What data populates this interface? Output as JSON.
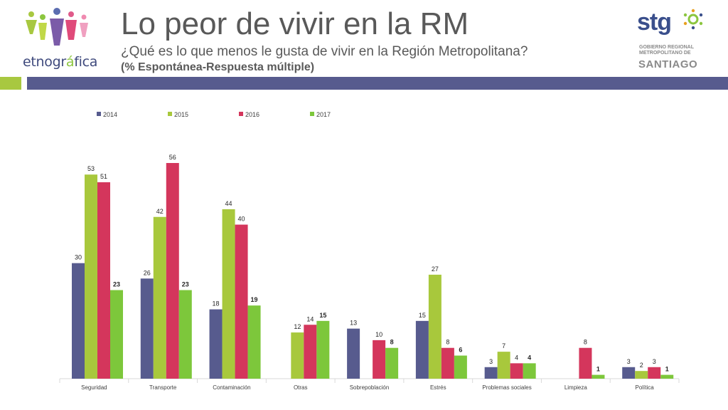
{
  "header": {
    "title": "Lo peor de vivir en la RM",
    "subtitle": "¿Qué es lo que menos le gusta de vivir en la Región Metropolitana?",
    "note": "(% Espontánea-Respuesta múltiple)"
  },
  "logos": {
    "left": {
      "brand_prefix": "etnogr",
      "brand_accent": "á",
      "brand_suffix": "fica"
    },
    "right": {
      "stg": "stg",
      "line1": "GOBIERNO REGIONAL",
      "line2": "METROPOLITANO DE",
      "line3": "SANTIAGO"
    }
  },
  "colors": {
    "accent_green": "#a8c840",
    "accent_blue": "#575b8e"
  },
  "chart_data": {
    "type": "bar",
    "categories": [
      "Seguridad",
      "Transporte",
      "Contaminación",
      "Otras",
      "Sobrepoblación",
      "Estrés",
      "Problemas sociales",
      "Limpieza",
      "Política"
    ],
    "series": [
      {
        "name": "2014",
        "color": "#575b8e",
        "values": [
          30,
          26,
          18,
          null,
          13,
          15,
          3,
          null,
          3
        ],
        "bold_labels": false
      },
      {
        "name": "2015",
        "color": "#a8c83c",
        "values": [
          53,
          42,
          44,
          12,
          null,
          27,
          7,
          null,
          2
        ],
        "bold_labels": false
      },
      {
        "name": "2016",
        "color": "#d4365c",
        "values": [
          51,
          56,
          40,
          14,
          10,
          8,
          4,
          8,
          3
        ],
        "bold_labels": false
      },
      {
        "name": "2017",
        "color": "#7dc73b",
        "values": [
          23,
          23,
          19,
          15,
          8,
          6,
          4,
          1,
          1
        ],
        "bold_labels": true
      }
    ],
    "ylim": [
      0,
      60
    ],
    "grid": false,
    "legend": "top-left"
  }
}
